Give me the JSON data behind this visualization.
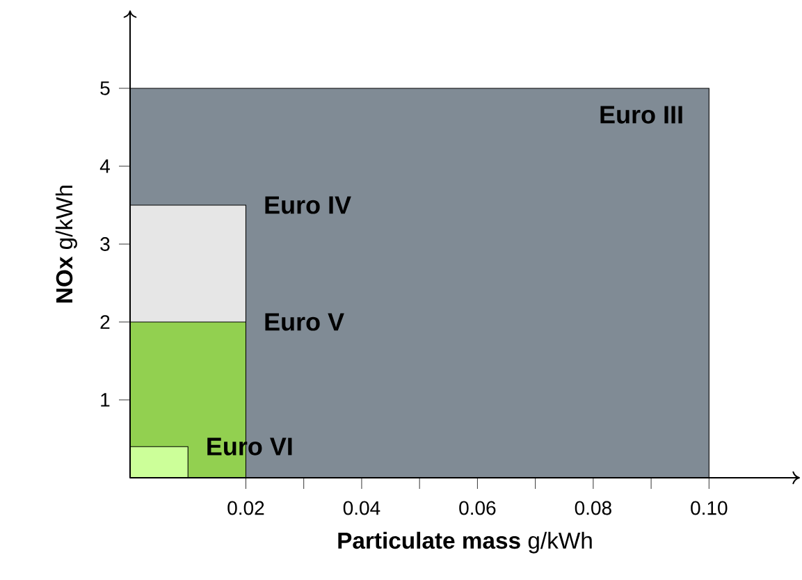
{
  "chart_data": {
    "type": "area",
    "xlabel": "**Particulate mass**  g/kWh",
    "ylabel": "**NOx**  g/kWh",
    "xlim": [
      0,
      0.1157
    ],
    "ylim": [
      0,
      6
    ],
    "xticks": [
      0.02,
      0.04,
      0.06,
      0.08,
      {
        "value": 0.1,
        "label": "0.10"
      }
    ],
    "yticks": [
      1,
      2,
      3,
      4,
      5
    ],
    "series": [
      {
        "name": "Euro III",
        "color": "#808b95",
        "x": [
          0,
          0.1
        ],
        "values": [
          5,
          5
        ]
      },
      {
        "name": "Euro IV",
        "color": "#e6e6e6",
        "x": [
          0,
          0.02
        ],
        "values": [
          3.5,
          3.5
        ]
      },
      {
        "name": "Euro V",
        "color": "#92d050",
        "x": [
          0,
          0.02
        ],
        "values": [
          2,
          2
        ]
      },
      {
        "name": "Euro VI",
        "color": "#ccff99",
        "x": [
          0,
          0.01
        ],
        "values": [
          0.4,
          0.4
        ]
      }
    ]
  }
}
